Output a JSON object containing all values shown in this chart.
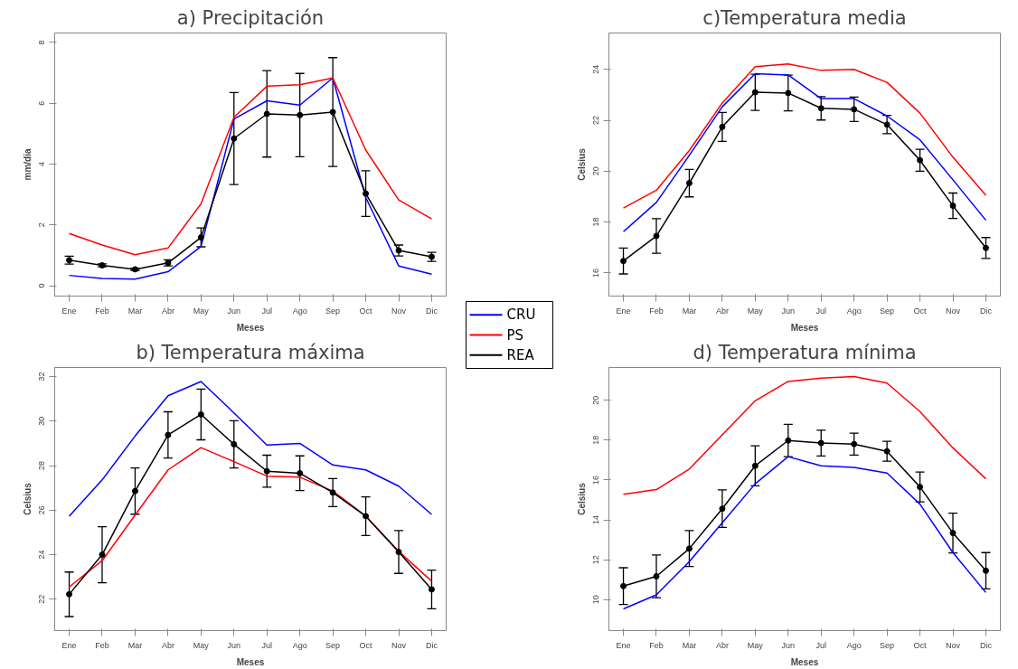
{
  "chart_data": [
    {
      "type": "line",
      "title": "a) Precipitación",
      "xlabel": "Meses",
      "ylabel": "mm/dia",
      "categories": [
        "Ene",
        "Feb",
        "Mar",
        "Abr",
        "May",
        "Jun",
        "Jul",
        "Ago",
        "Sep",
        "Oct",
        "Nov",
        "Dic"
      ],
      "ylim": [
        -0.34,
        8.31
      ],
      "yticks": [
        0,
        2,
        4,
        6,
        8
      ],
      "grid": false,
      "legend": "right",
      "series": [
        {
          "name": "CRU",
          "color": "#0000ff",
          "values": [
            0.34,
            0.24,
            0.22,
            0.46,
            1.29,
            5.48,
            6.08,
            5.94,
            6.83,
            2.9,
            0.65,
            0.38
          ]
        },
        {
          "name": "PS",
          "color": "#ff0000",
          "values": [
            1.72,
            1.34,
            1.02,
            1.24,
            2.69,
            5.54,
            6.56,
            6.61,
            6.83,
            4.46,
            2.82,
            2.2
          ]
        },
        {
          "name": "REA",
          "color": "#000000",
          "marker": "circle",
          "values": [
            0.84,
            0.67,
            0.54,
            0.75,
            1.59,
            4.84,
            5.65,
            5.61,
            5.71,
            3.03,
            1.16,
            0.95
          ],
          "errors": [
            0.13,
            0.05,
            0.04,
            0.1,
            0.31,
            1.51,
            1.42,
            1.37,
            1.79,
            0.75,
            0.18,
            0.15
          ]
        }
      ]
    },
    {
      "type": "line",
      "title": "c)Temperatura media",
      "xlabel": "Meses",
      "ylabel": "Celsius",
      "categories": [
        "Ene",
        "Feb",
        "Mar",
        "Abr",
        "May",
        "Jun",
        "Jul",
        "Ago",
        "Sep",
        "Oct",
        "Nov",
        "Dic"
      ],
      "ylim": [
        15.09,
        25.43
      ],
      "yticks": [
        16,
        18,
        20,
        22,
        24
      ],
      "grid": false,
      "series": [
        {
          "color": "#0000ff",
          "values": [
            17.62,
            18.77,
            20.62,
            22.53,
            23.83,
            23.78,
            22.85,
            22.85,
            22.17,
            21.23,
            19.66,
            18.07
          ]
        },
        {
          "color": "#ff0000",
          "values": [
            18.55,
            19.25,
            20.81,
            22.68,
            24.11,
            24.21,
            23.96,
            24.0,
            23.49,
            22.28,
            20.55,
            19.05
          ]
        },
        {
          "color": "#000000",
          "marker": "circle",
          "values": [
            16.47,
            17.45,
            19.53,
            21.74,
            23.1,
            23.07,
            22.47,
            22.43,
            21.83,
            20.43,
            18.64,
            16.98
          ],
          "errors": [
            0.51,
            0.68,
            0.54,
            0.57,
            0.71,
            0.7,
            0.46,
            0.48,
            0.36,
            0.43,
            0.5,
            0.41
          ]
        }
      ]
    },
    {
      "type": "line",
      "title": "b) Temperatura máxima",
      "xlabel": "Meses",
      "ylabel": "Celsius",
      "categories": [
        "Ene",
        "Feb",
        "Mar",
        "Abr",
        "May",
        "Jun",
        "Jul",
        "Ago",
        "Sep",
        "Oct",
        "Nov",
        "Dic"
      ],
      "ylim": [
        20.59,
        32.41
      ],
      "yticks": [
        22,
        24,
        26,
        28,
        30,
        32
      ],
      "grid": false,
      "series": [
        {
          "color": "#0000ff",
          "values": [
            25.73,
            27.36,
            29.33,
            31.14,
            31.78,
            30.37,
            28.93,
            29.0,
            28.03,
            27.81,
            27.08,
            25.81
          ]
        },
        {
          "color": "#ff0000",
          "values": [
            22.55,
            23.73,
            25.78,
            27.81,
            28.81,
            28.18,
            27.53,
            27.48,
            26.86,
            25.73,
            24.15,
            22.81
          ]
        },
        {
          "color": "#000000",
          "marker": "circle",
          "values": [
            22.22,
            24.0,
            26.86,
            29.38,
            30.3,
            28.96,
            27.75,
            27.66,
            26.79,
            25.73,
            24.12,
            22.44
          ],
          "errors": [
            1.0,
            1.26,
            1.04,
            1.04,
            1.14,
            1.06,
            0.72,
            0.78,
            0.63,
            0.87,
            0.96,
            0.87
          ]
        }
      ]
    },
    {
      "type": "line",
      "title": "d) Temperatura mínima",
      "xlabel": "Meses",
      "ylabel": "Celsius",
      "categories": [
        "Ene",
        "Feb",
        "Mar",
        "Abr",
        "May",
        "Jun",
        "Jul",
        "Ago",
        "Sep",
        "Oct",
        "Nov",
        "Dic"
      ],
      "ylim": [
        8.45,
        21.64
      ],
      "yticks": [
        10,
        12,
        14,
        16,
        18,
        20
      ],
      "grid": false,
      "series": [
        {
          "color": "#0000ff",
          "values": [
            9.54,
            10.24,
            11.91,
            13.86,
            15.81,
            17.17,
            16.71,
            16.63,
            16.35,
            14.79,
            12.36,
            10.36
          ]
        },
        {
          "color": "#ff0000",
          "values": [
            15.28,
            15.52,
            16.55,
            18.26,
            19.97,
            20.94,
            21.11,
            21.19,
            20.86,
            19.43,
            17.61,
            16.06
          ]
        },
        {
          "color": "#000000",
          "marker": "circle",
          "values": [
            10.68,
            11.17,
            12.56,
            14.56,
            16.71,
            17.98,
            17.85,
            17.8,
            17.44,
            15.65,
            13.34,
            11.45
          ],
          "errors": [
            0.92,
            1.07,
            0.9,
            0.94,
            1.0,
            0.81,
            0.65,
            0.55,
            0.5,
            0.75,
            1.0,
            0.91
          ]
        }
      ]
    }
  ]
}
